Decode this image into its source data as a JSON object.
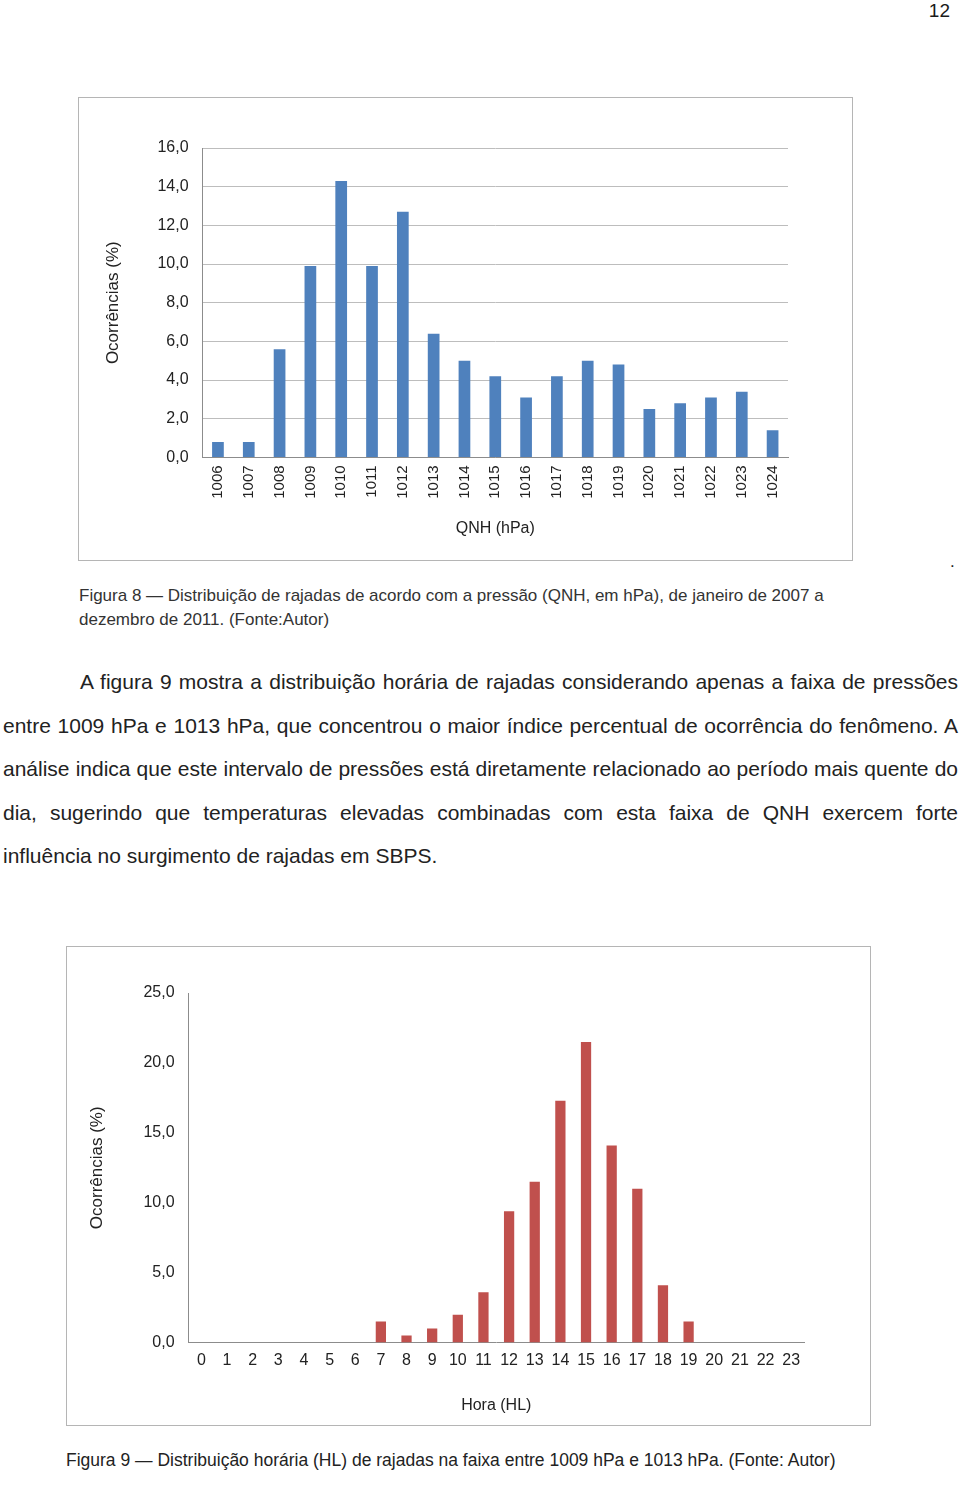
{
  "page_number": "12",
  "mark": ".",
  "figure8_caption": "Figura 8 — Distribuição de rajadas de acordo com a pressão (QNH, em hPa), de janeiro de 2007 a dezembro de 2011. (Fonte:Autor)",
  "paragraph": "A figura 9 mostra a distribuição horária de rajadas considerando apenas a faixa de pressões entre 1009 hPa e 1013 hPa, que concentrou o maior índice percentual de ocorrência do fenômeno. A análise indica que este intervalo de pressões está diretamente relacionado ao período mais quente do dia, sugerindo que temperaturas elevadas combinadas com esta faixa de QNH exercem forte influência no surgimento de rajadas em SBPS.",
  "figure9_caption": "Figura 9 — Distribuição horária (HL) de rajadas na faixa entre 1009 hPa e 1013 hPa. (Fonte: Autor)",
  "chart_data": [
    {
      "type": "bar",
      "x_label": "QNH (hPa)",
      "y_label": "Ocorrências (%)",
      "categories": [
        "1006",
        "1007",
        "1008",
        "1009",
        "1010",
        "1011",
        "1012",
        "1013",
        "1014",
        "1015",
        "1016",
        "1017",
        "1018",
        "1019",
        "1020",
        "1021",
        "1022",
        "1023",
        "1024"
      ],
      "values": [
        0.8,
        0.8,
        5.6,
        9.9,
        14.3,
        9.9,
        12.7,
        6.4,
        5.0,
        4.2,
        3.1,
        4.2,
        5.0,
        4.8,
        2.5,
        2.8,
        3.1,
        3.4,
        1.4
      ],
      "color": "#4f81bd",
      "ylim": [
        0,
        16
      ],
      "yticks": [
        {
          "value": 0,
          "label": "0,0"
        },
        {
          "value": 2,
          "label": "2,0"
        },
        {
          "value": 4,
          "label": "4,0"
        },
        {
          "value": 6,
          "label": "6,0"
        },
        {
          "value": 8,
          "label": "8,0"
        },
        {
          "value": 10,
          "label": "10,0"
        },
        {
          "value": 12,
          "label": "12,0"
        },
        {
          "value": 14,
          "label": "14,0"
        },
        {
          "value": 16,
          "label": "16,0"
        }
      ],
      "grid": true
    },
    {
      "type": "bar",
      "x_label": "Hora (HL)",
      "y_label": "Ocorrências (%)",
      "categories": [
        "0",
        "1",
        "2",
        "3",
        "4",
        "5",
        "6",
        "7",
        "8",
        "9",
        "10",
        "11",
        "12",
        "13",
        "14",
        "15",
        "16",
        "17",
        "18",
        "19",
        "20",
        "21",
        "22",
        "23"
      ],
      "values": [
        0,
        0,
        0,
        0,
        0,
        0,
        0,
        1.5,
        0.5,
        1.0,
        2.0,
        3.6,
        9.4,
        11.5,
        17.3,
        21.5,
        14.1,
        11.0,
        4.1,
        1.5,
        0,
        0,
        0,
        0
      ],
      "color": "#c0504d",
      "ylim": [
        0,
        25
      ],
      "yticks": [
        {
          "value": 0,
          "label": "0,0"
        },
        {
          "value": 5,
          "label": "5,0"
        },
        {
          "value": 10,
          "label": "10,0"
        },
        {
          "value": 15,
          "label": "15,0"
        },
        {
          "value": 20,
          "label": "20,0"
        },
        {
          "value": 25,
          "label": "25,0"
        }
      ],
      "grid": false
    }
  ]
}
